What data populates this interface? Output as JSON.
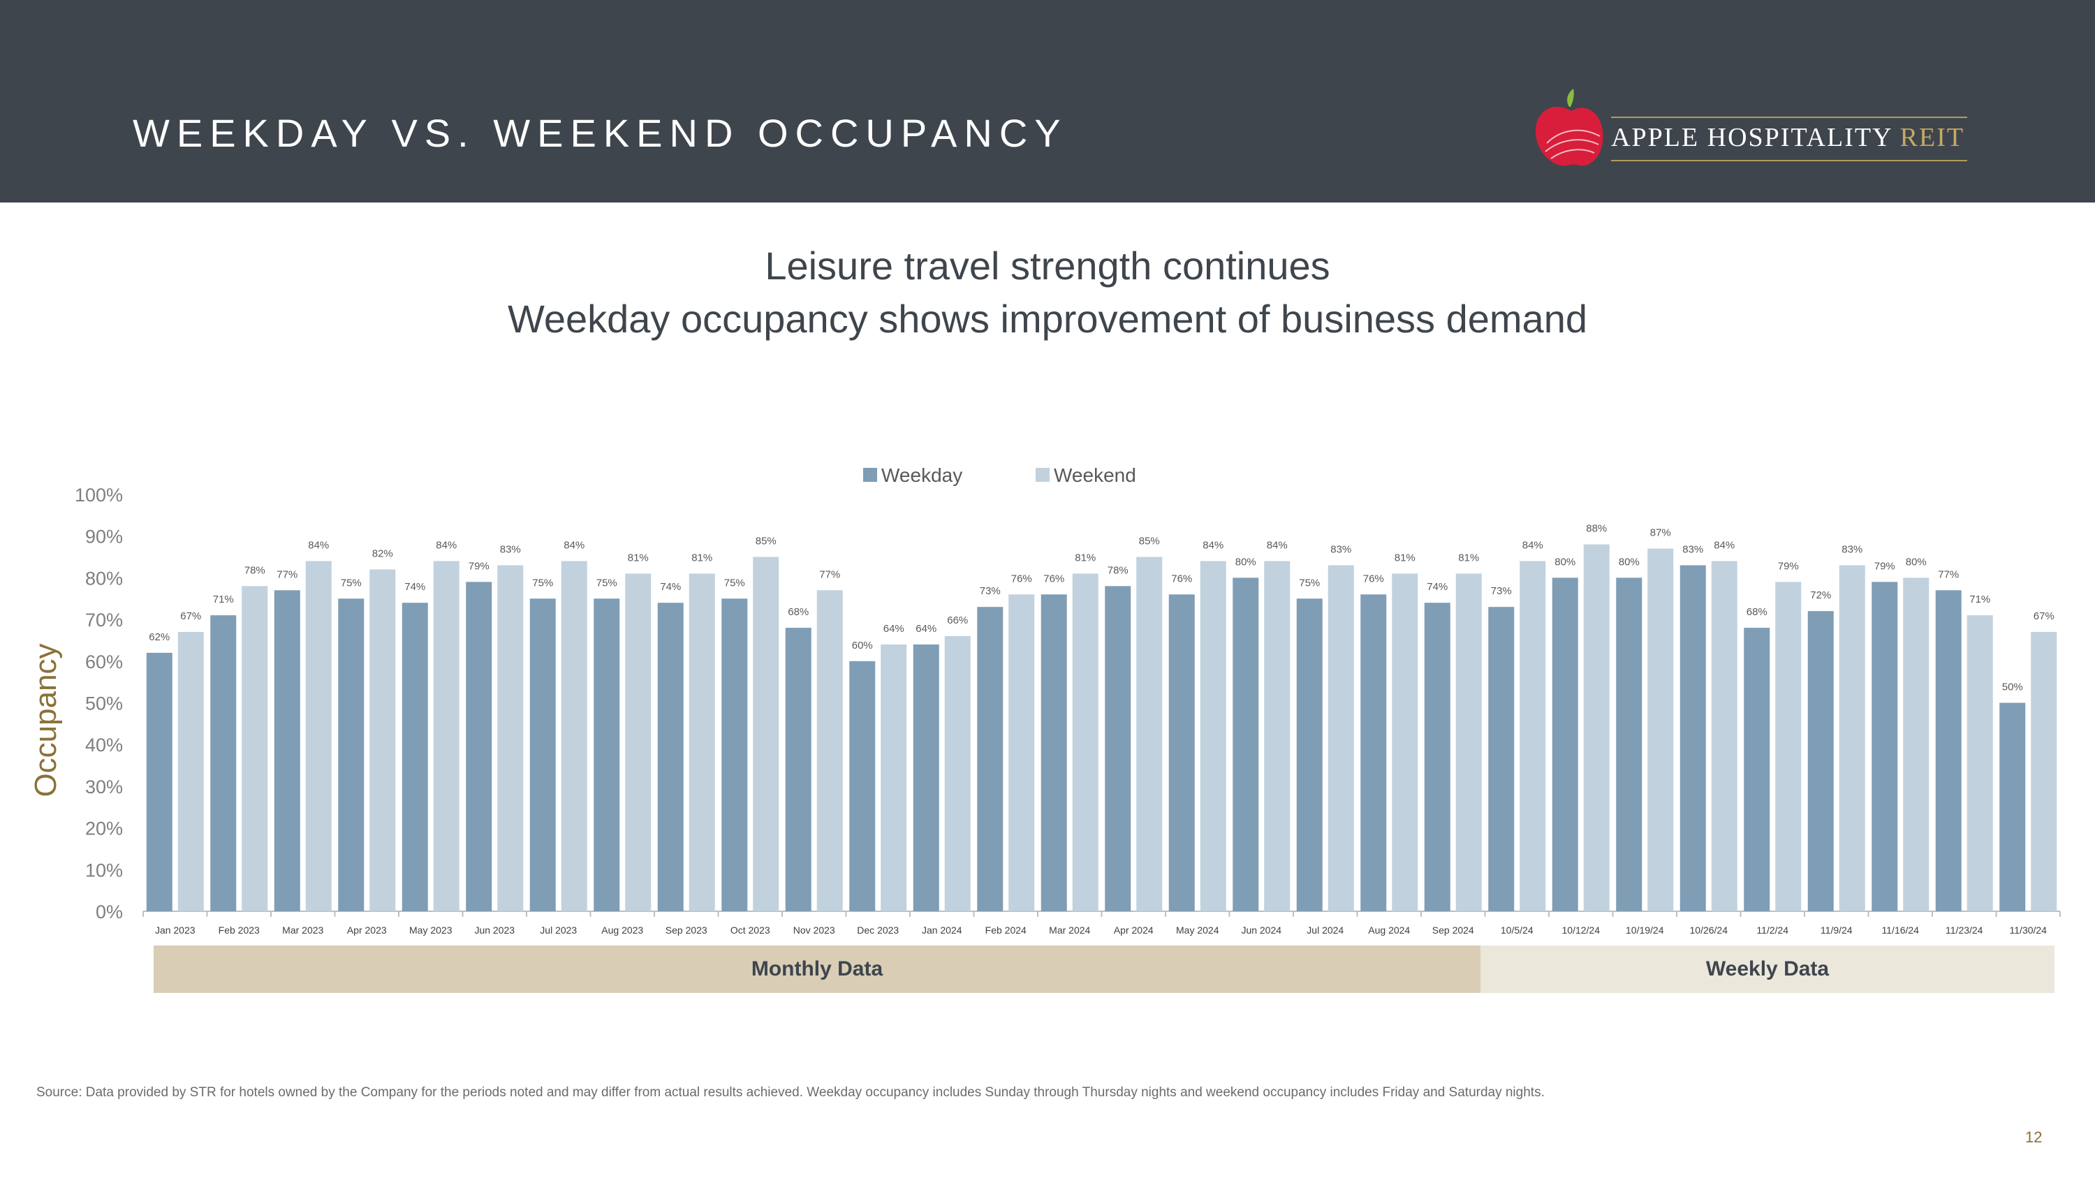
{
  "header": {
    "title": "WEEKDAY VS. WEEKEND OCCUPANCY",
    "logo_text_main": "APPLE HOSPITALITY",
    "logo_text_accent": "REIT"
  },
  "subtitle_line1": "Leisure travel strength continues",
  "subtitle_line2": "Weekday occupancy shows improvement of business demand",
  "chart_data": {
    "type": "bar",
    "ylabel": "Occupancy",
    "ylim": [
      0,
      100
    ],
    "yticks": [
      "0%",
      "10%",
      "20%",
      "30%",
      "40%",
      "50%",
      "60%",
      "70%",
      "80%",
      "90%",
      "100%"
    ],
    "legend_position": "top-center",
    "categories": [
      "Jan 2023",
      "Feb 2023",
      "Mar 2023",
      "Apr 2023",
      "May 2023",
      "Jun 2023",
      "Jul 2023",
      "Aug 2023",
      "Sep 2023",
      "Oct 2023",
      "Nov 2023",
      "Dec 2023",
      "Jan 2024",
      "Feb 2024",
      "Mar 2024",
      "Apr 2024",
      "May 2024",
      "Jun 2024",
      "Jul 2024",
      "Aug 2024",
      "Sep 2024",
      "10/5/24",
      "10/12/24",
      "10/19/24",
      "10/26/24",
      "11/2/24",
      "11/9/24",
      "11/16/24",
      "11/23/24",
      "11/30/24"
    ],
    "series": [
      {
        "name": "Weekday",
        "color": "#7f9db5",
        "values": [
          62,
          71,
          77,
          75,
          74,
          79,
          75,
          75,
          74,
          75,
          68,
          60,
          64,
          73,
          76,
          78,
          76,
          80,
          75,
          76,
          74,
          73,
          80,
          80,
          83,
          68,
          72,
          79,
          77,
          50
        ]
      },
      {
        "name": "Weekend",
        "color": "#c1d1dd",
        "values": [
          67,
          78,
          84,
          82,
          84,
          83,
          84,
          81,
          81,
          85,
          77,
          64,
          66,
          76,
          81,
          85,
          84,
          84,
          83,
          81,
          81,
          84,
          88,
          87,
          84,
          79,
          83,
          80,
          71,
          67
        ]
      }
    ]
  },
  "bands": {
    "monthly_label": "Monthly Data",
    "weekly_label": "Weekly Data",
    "monthly_color": "#d9cdb6",
    "weekly_color": "#ebe7db"
  },
  "source": "Source:  Data provided by STR for hotels owned by the Company for the periods noted and may differ from actual results achieved. Weekday occupancy includes Sunday through Thursday nights and weekend occupancy includes Friday and Saturday nights.",
  "page_number": "12"
}
